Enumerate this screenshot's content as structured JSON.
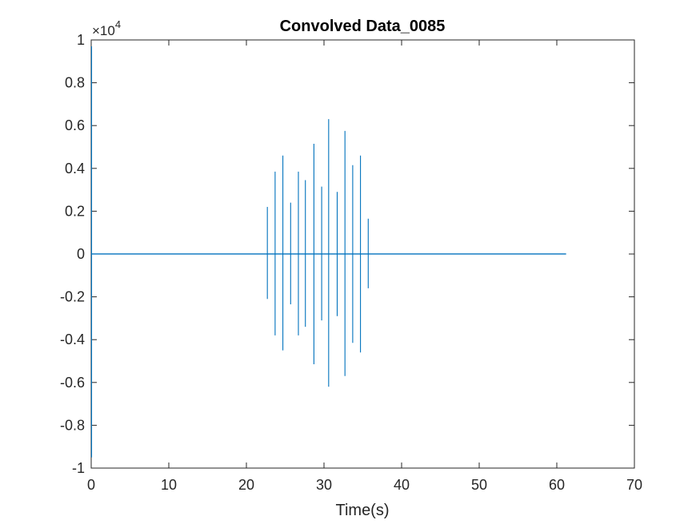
{
  "chart_data": {
    "type": "line",
    "title": "Convolved Data_0085",
    "xlabel": "Time(s)",
    "ylabel": "",
    "xlim": [
      0,
      70
    ],
    "ylim": [
      -1,
      1
    ],
    "y_exponent_label": "×10",
    "y_exponent_power": "4",
    "x_ticks": [
      "0",
      "10",
      "20",
      "30",
      "40",
      "50",
      "60",
      "70"
    ],
    "y_ticks": [
      "-1",
      "-0.8",
      "-0.6",
      "-0.4",
      "-0.2",
      "0",
      "0.2",
      "0.4",
      "0.6",
      "0.8",
      "1"
    ],
    "grid": false,
    "line_color": "#0072BD",
    "series": [
      {
        "x_range": [
          0,
          61.2
        ],
        "baseline_noise": 0.003,
        "spikes": [
          {
            "x": 0.05,
            "ymax": 0.97,
            "ymin": -0.95
          },
          {
            "x": 22.7,
            "ymax": 0.22,
            "ymin": -0.21
          },
          {
            "x": 23.7,
            "ymax": 0.385,
            "ymin": -0.38
          },
          {
            "x": 24.7,
            "ymax": 0.46,
            "ymin": -0.45
          },
          {
            "x": 25.7,
            "ymax": 0.24,
            "ymin": -0.235
          },
          {
            "x": 26.7,
            "ymax": 0.385,
            "ymin": -0.38
          },
          {
            "x": 27.6,
            "ymax": 0.345,
            "ymin": -0.34
          },
          {
            "x": 28.7,
            "ymax": 0.515,
            "ymin": -0.515
          },
          {
            "x": 29.7,
            "ymax": 0.315,
            "ymin": -0.31
          },
          {
            "x": 30.6,
            "ymax": 0.63,
            "ymin": -0.62
          },
          {
            "x": 31.7,
            "ymax": 0.29,
            "ymin": -0.29
          },
          {
            "x": 32.7,
            "ymax": 0.575,
            "ymin": -0.57
          },
          {
            "x": 33.7,
            "ymax": 0.415,
            "ymin": -0.415
          },
          {
            "x": 34.7,
            "ymax": 0.46,
            "ymin": -0.46
          },
          {
            "x": 35.7,
            "ymax": 0.165,
            "ymin": -0.16
          }
        ]
      }
    ]
  }
}
